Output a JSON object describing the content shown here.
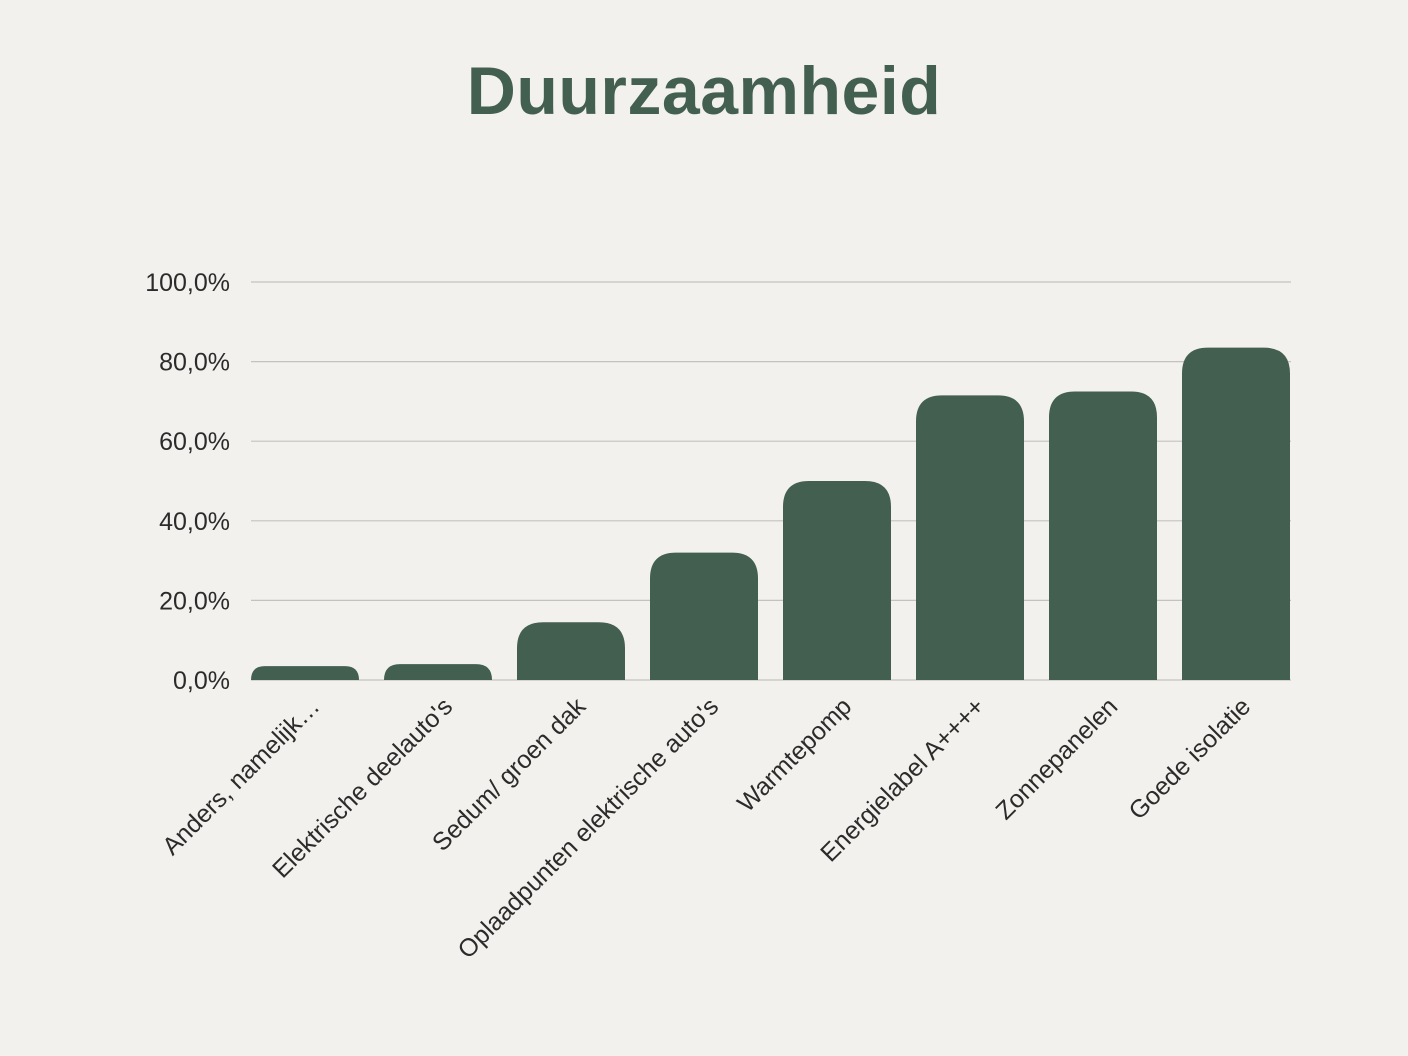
{
  "chart_data": {
    "type": "bar",
    "title": "Duurzaamheid",
    "xlabel": "",
    "ylabel": "",
    "categories": [
      "Anders, namelijk…",
      "Elektrische deelauto's",
      "Sedum/ groen dak",
      "Oplaadpunten elektrische auto's",
      "Warmtepomp",
      "Energielabel A++++",
      "Zonnepanelen",
      "Goede isolatie"
    ],
    "values": [
      3.5,
      4.0,
      14.5,
      32.0,
      50.0,
      71.5,
      72.5,
      83.5
    ],
    "ylim": [
      0,
      100
    ],
    "yticks": [
      0,
      20,
      40,
      60,
      80,
      100
    ],
    "ytick_labels": [
      "0,0%",
      "20,0%",
      "40,0%",
      "60,0%",
      "80,0%",
      "100,0%"
    ],
    "grid": true,
    "legend": "none",
    "colors": {
      "bar": "#435f50",
      "title": "#435f50",
      "background": "#f3f1ed",
      "grid": "#c4c2bd"
    }
  }
}
